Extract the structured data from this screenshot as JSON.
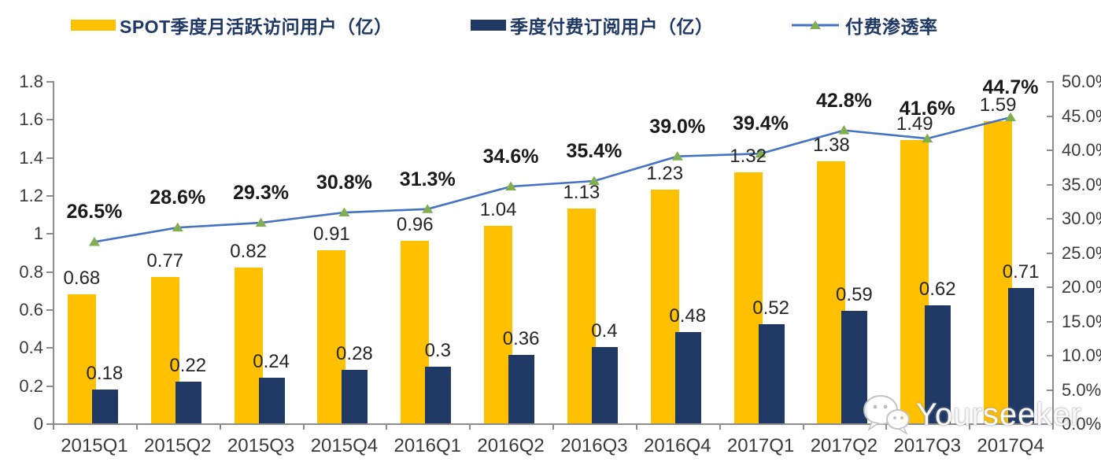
{
  "legend": {
    "mau": {
      "label": "SPOT季度月活跃访问用户（亿）",
      "color": "#FFC000"
    },
    "subs": {
      "label": "季度付费订阅用户（亿）",
      "color": "#1F3864"
    },
    "penetration": {
      "label": "付费渗透率",
      "line_color": "#4472C4",
      "marker_color": "#82AE53"
    }
  },
  "watermark": {
    "text": "Yourseeker",
    "icon": "wechat-bubbles-icon"
  },
  "chart_data": {
    "type": "combo-bar-line",
    "categories": [
      "2015Q1",
      "2015Q2",
      "2015Q3",
      "2015Q4",
      "2016Q1",
      "2016Q2",
      "2016Q3",
      "2016Q4",
      "2017Q1",
      "2017Q2",
      "2017Q3",
      "2017Q4"
    ],
    "series": [
      {
        "name": "SPOT季度月活跃访问用户（亿）",
        "type": "bar",
        "axis": "left",
        "color": "#FFC000",
        "values": [
          0.68,
          0.77,
          0.82,
          0.91,
          0.96,
          1.04,
          1.13,
          1.23,
          1.32,
          1.38,
          1.49,
          1.59
        ],
        "labels": [
          "0.68",
          "0.77",
          "0.82",
          "0.91",
          "0.96",
          "1.04",
          "1.13",
          "1.23",
          "1.32",
          "1.38",
          "1.49",
          "1.59"
        ]
      },
      {
        "name": "季度付费订阅用户（亿）",
        "type": "bar",
        "axis": "left",
        "color": "#1F3864",
        "values": [
          0.18,
          0.22,
          0.24,
          0.28,
          0.3,
          0.36,
          0.4,
          0.48,
          0.52,
          0.59,
          0.62,
          0.71
        ],
        "labels": [
          "0.18",
          "0.22",
          "0.24",
          "0.28",
          "0.3",
          "0.36",
          "0.4",
          "0.48",
          "0.52",
          "0.59",
          "0.62",
          "0.71"
        ]
      },
      {
        "name": "付费渗透率",
        "type": "line",
        "axis": "right",
        "color": "#4472C4",
        "marker_color": "#82AE53",
        "values": [
          26.5,
          28.6,
          29.3,
          30.8,
          31.3,
          34.6,
          35.4,
          39.0,
          39.4,
          42.8,
          41.6,
          44.7
        ],
        "labels": [
          "26.5%",
          "28.6%",
          "29.3%",
          "30.8%",
          "31.3%",
          "34.6%",
          "35.4%",
          "39.0%",
          "39.4%",
          "42.8%",
          "41.6%",
          "44.7%"
        ]
      }
    ],
    "left_axis": {
      "min": 0,
      "max": 1.8,
      "step": 0.2,
      "tick_labels": [
        "1.8",
        "1.6",
        "1.4",
        "1.2",
        "1",
        "0.8",
        "0.6",
        "0.4",
        "0.2",
        "0"
      ]
    },
    "right_axis": {
      "min": 0,
      "max": 50,
      "step": 5,
      "tick_labels": [
        "50.0%",
        "45.0%",
        "40.0%",
        "35.0%",
        "30.0%",
        "25.0%",
        "20.0%",
        "15.0%",
        "10.0%",
        "5.0%",
        "0.0%"
      ]
    },
    "grid": false,
    "legend_position": "top"
  }
}
